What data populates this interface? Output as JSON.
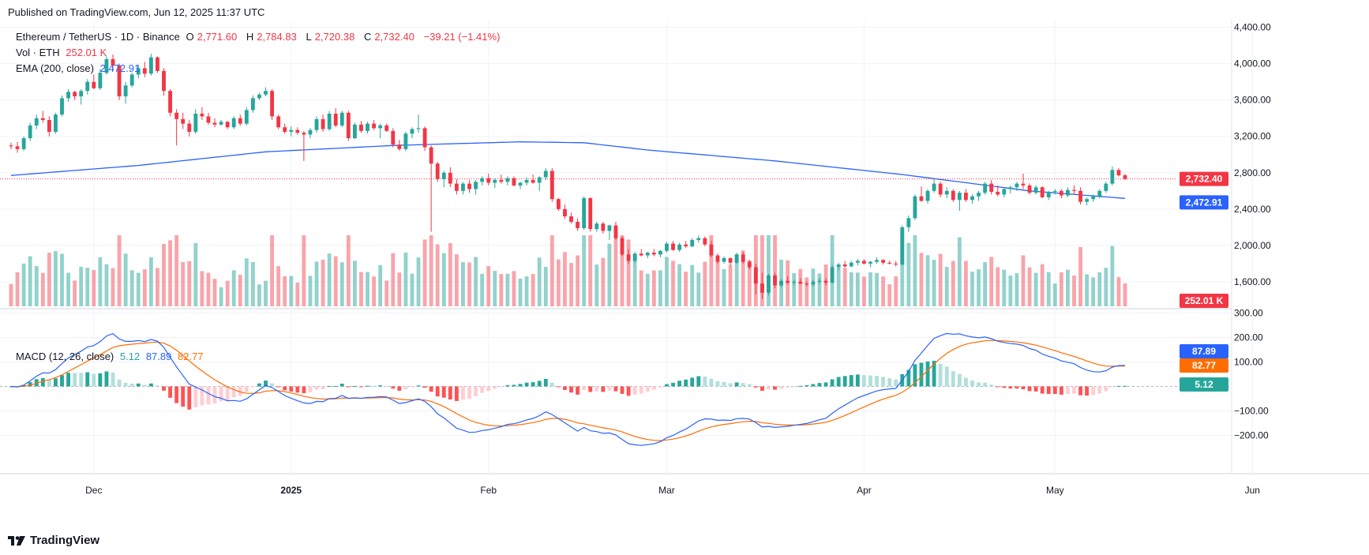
{
  "caption": "Published on TradingView.com, Jun 12, 2025 11:37 UTC",
  "legend": {
    "symbol": "Ethereum / TetherUS · 1D · Binance",
    "o_label": "O",
    "o": "2,771.60",
    "h_label": "H",
    "h": "2,784.83",
    "l_label": "L",
    "l": "2,720.38",
    "c_label": "C",
    "c": "2,732.40",
    "chg": "−39.21 (−1.41%)",
    "vol_label": "Vol · ETH",
    "vol": "252.01 K",
    "ema_label": "EMA (200, close)",
    "ema": "2,472.91",
    "macd_label": "MACD (12, 26, close)",
    "macd_hist": "5.12",
    "macd_line": "87.89",
    "macd_signal": "82.77"
  },
  "brand": "TradingView",
  "colors": {
    "up": "#26a69a",
    "down": "#f23645",
    "ema": "#2962ff",
    "macd": "#2962ff",
    "signal": "#ff6d00"
  },
  "chart_data": {
    "type": "candlestick",
    "x_labels": [
      "Dec",
      "2025",
      "Feb",
      "Mar",
      "Apr",
      "May",
      "Jun"
    ],
    "price_axis": [
      "4,400.00",
      "4,000.00",
      "3,600.00",
      "3,200.00",
      "2,800.00",
      "2,400.00",
      "2,000.00",
      "1,600.00"
    ],
    "macd_axis": [
      "300.00",
      "200.00",
      "100.00",
      "−100.00",
      "−200.00"
    ],
    "ylim_price": [
      1330,
      4440
    ],
    "ylim_macd": [
      -260,
      305
    ],
    "last_price_tag": "2,732.40",
    "ema_tag": "2,472.91",
    "volume_tag": "252.01 K",
    "macd_tag": "87.89",
    "signal_tag": "82.77",
    "hist_tag": "5.12",
    "ema_points": [
      [
        0,
        2770
      ],
      [
        20,
        2880
      ],
      [
        40,
        3030
      ],
      [
        60,
        3100
      ],
      [
        80,
        3140
      ],
      [
        90,
        3130
      ],
      [
        100,
        3050
      ],
      [
        120,
        2930
      ],
      [
        140,
        2780
      ],
      [
        160,
        2600
      ],
      [
        180,
        2490
      ],
      [
        200,
        2460
      ],
      [
        230,
        2470
      ],
      [
        260,
        2473
      ]
    ],
    "candles": [
      [
        3100,
        3130,
        3060,
        3090
      ],
      [
        3090,
        3140,
        3020,
        3060
      ],
      [
        3060,
        3200,
        3040,
        3180
      ],
      [
        3180,
        3350,
        3150,
        3320
      ],
      [
        3320,
        3440,
        3280,
        3400
      ],
      [
        3400,
        3480,
        3350,
        3380
      ],
      [
        3380,
        3420,
        3200,
        3250
      ],
      [
        3250,
        3460,
        3230,
        3440
      ],
      [
        3440,
        3650,
        3420,
        3620
      ],
      [
        3620,
        3720,
        3580,
        3690
      ],
      [
        3690,
        3700,
        3600,
        3640
      ],
      [
        3640,
        3720,
        3550,
        3700
      ],
      [
        3700,
        3830,
        3660,
        3800
      ],
      [
        3800,
        3880,
        3720,
        3730
      ],
      [
        3730,
        3940,
        3710,
        3900
      ],
      [
        3900,
        4080,
        3880,
        4050
      ],
      [
        4050,
        4100,
        3920,
        3980
      ],
      [
        3980,
        4000,
        3600,
        3640
      ],
      [
        3640,
        3800,
        3560,
        3760
      ],
      [
        3760,
        3900,
        3740,
        3880
      ],
      [
        3880,
        3990,
        3840,
        3950
      ],
      [
        3950,
        4020,
        3850,
        3890
      ],
      [
        3890,
        4110,
        3870,
        4070
      ],
      [
        4070,
        4080,
        3900,
        3920
      ],
      [
        3920,
        3950,
        3650,
        3700
      ],
      [
        3700,
        3720,
        3420,
        3460
      ],
      [
        3460,
        3500,
        3100,
        3390
      ],
      [
        3390,
        3460,
        3280,
        3340
      ],
      [
        3340,
        3380,
        3200,
        3250
      ],
      [
        3250,
        3500,
        3230,
        3450
      ],
      [
        3450,
        3520,
        3380,
        3420
      ],
      [
        3420,
        3460,
        3330,
        3350
      ],
      [
        3350,
        3400,
        3300,
        3330
      ],
      [
        3330,
        3380,
        3320,
        3360
      ],
      [
        3360,
        3370,
        3280,
        3300
      ],
      [
        3300,
        3420,
        3280,
        3400
      ],
      [
        3400,
        3440,
        3320,
        3340
      ],
      [
        3340,
        3520,
        3320,
        3490
      ],
      [
        3490,
        3650,
        3460,
        3620
      ],
      [
        3620,
        3680,
        3600,
        3660
      ],
      [
        3660,
        3740,
        3640,
        3700
      ],
      [
        3700,
        3720,
        3380,
        3420
      ],
      [
        3420,
        3440,
        3280,
        3300
      ],
      [
        3300,
        3340,
        3230,
        3250
      ],
      [
        3250,
        3310,
        3200,
        3270
      ],
      [
        3270,
        3300,
        3220,
        3240
      ],
      [
        3240,
        3260,
        2930,
        3220
      ],
      [
        3220,
        3290,
        3180,
        3270
      ],
      [
        3270,
        3420,
        3240,
        3390
      ],
      [
        3390,
        3440,
        3250,
        3280
      ],
      [
        3280,
        3480,
        3260,
        3450
      ],
      [
        3450,
        3510,
        3300,
        3320
      ],
      [
        3320,
        3480,
        3300,
        3460
      ],
      [
        3460,
        3480,
        3150,
        3180
      ],
      [
        3180,
        3350,
        3170,
        3330
      ],
      [
        3330,
        3370,
        3240,
        3260
      ],
      [
        3260,
        3360,
        3230,
        3340
      ],
      [
        3340,
        3380,
        3270,
        3290
      ],
      [
        3290,
        3340,
        3180,
        3320
      ],
      [
        3320,
        3340,
        3250,
        3260
      ],
      [
        3260,
        3290,
        3080,
        3110
      ],
      [
        3110,
        3160,
        3040,
        3060
      ],
      [
        3060,
        3250,
        3040,
        3230
      ],
      [
        3230,
        3300,
        3180,
        3280
      ],
      [
        3280,
        3440,
        3240,
        3290
      ],
      [
        3290,
        3310,
        3040,
        3080
      ],
      [
        3080,
        3100,
        2150,
        2900
      ],
      [
        2900,
        2920,
        2700,
        2730
      ],
      [
        2730,
        2820,
        2640,
        2800
      ],
      [
        2800,
        2860,
        2640,
        2680
      ],
      [
        2680,
        2730,
        2560,
        2600
      ],
      [
        2600,
        2700,
        2560,
        2680
      ],
      [
        2680,
        2720,
        2580,
        2620
      ],
      [
        2620,
        2720,
        2560,
        2700
      ],
      [
        2700,
        2760,
        2660,
        2740
      ],
      [
        2740,
        2790,
        2660,
        2690
      ],
      [
        2690,
        2740,
        2630,
        2720
      ],
      [
        2720,
        2780,
        2680,
        2700
      ],
      [
        2700,
        2760,
        2660,
        2740
      ],
      [
        2740,
        2760,
        2650,
        2660
      ],
      [
        2660,
        2700,
        2620,
        2690
      ],
      [
        2690,
        2750,
        2660,
        2720
      ],
      [
        2720,
        2780,
        2680,
        2690
      ],
      [
        2690,
        2760,
        2600,
        2750
      ],
      [
        2750,
        2850,
        2720,
        2820
      ],
      [
        2820,
        2850,
        2480,
        2510
      ],
      [
        2510,
        2520,
        2380,
        2400
      ],
      [
        2400,
        2450,
        2290,
        2320
      ],
      [
        2320,
        2360,
        2240,
        2260
      ],
      [
        2260,
        2300,
        2160,
        2190
      ],
      [
        2190,
        2540,
        2170,
        2520
      ],
      [
        2520,
        2530,
        2150,
        2180
      ],
      [
        2180,
        2260,
        2150,
        2240
      ],
      [
        2240,
        2260,
        2130,
        2160
      ],
      [
        2160,
        2230,
        2060,
        2220
      ],
      [
        2220,
        2260,
        2060,
        2080
      ],
      [
        2080,
        2100,
        1880,
        1900
      ],
      [
        1900,
        1960,
        1800,
        1830
      ],
      [
        1830,
        1930,
        1810,
        1910
      ],
      [
        1910,
        1960,
        1880,
        1890
      ],
      [
        1890,
        1930,
        1860,
        1920
      ],
      [
        1920,
        1960,
        1880,
        1900
      ],
      [
        1900,
        1950,
        1870,
        1940
      ],
      [
        1940,
        2040,
        1920,
        2020
      ],
      [
        2020,
        2050,
        1940,
        1950
      ],
      [
        1950,
        2030,
        1930,
        2010
      ],
      [
        2010,
        2050,
        1970,
        1990
      ],
      [
        1990,
        2080,
        1980,
        2060
      ],
      [
        2060,
        2110,
        2030,
        2080
      ],
      [
        2080,
        2100,
        1990,
        2010
      ],
      [
        2010,
        2050,
        1870,
        1890
      ],
      [
        1890,
        1910,
        1800,
        1820
      ],
      [
        1820,
        1880,
        1800,
        1860
      ],
      [
        1860,
        1870,
        1780,
        1810
      ],
      [
        1810,
        1920,
        1800,
        1900
      ],
      [
        1900,
        1930,
        1800,
        1820
      ],
      [
        1820,
        1840,
        1740,
        1760
      ],
      [
        1760,
        1800,
        1460,
        1580
      ],
      [
        1580,
        1700,
        1410,
        1480
      ],
      [
        1480,
        1690,
        1450,
        1670
      ],
      [
        1670,
        1700,
        1530,
        1560
      ],
      [
        1560,
        1630,
        1540,
        1610
      ],
      [
        1610,
        1660,
        1570,
        1590
      ],
      [
        1590,
        1620,
        1560,
        1600
      ],
      [
        1600,
        1640,
        1570,
        1580
      ],
      [
        1580,
        1600,
        1550,
        1570
      ],
      [
        1570,
        1620,
        1550,
        1600
      ],
      [
        1600,
        1640,
        1580,
        1610
      ],
      [
        1610,
        1640,
        1560,
        1590
      ],
      [
        1590,
        1780,
        1580,
        1760
      ],
      [
        1760,
        1810,
        1730,
        1790
      ],
      [
        1790,
        1830,
        1750,
        1770
      ],
      [
        1770,
        1830,
        1760,
        1810
      ],
      [
        1810,
        1850,
        1780,
        1830
      ],
      [
        1830,
        1850,
        1790,
        1800
      ],
      [
        1800,
        1830,
        1760,
        1820
      ],
      [
        1820,
        1870,
        1800,
        1840
      ],
      [
        1840,
        1850,
        1790,
        1810
      ],
      [
        1810,
        1830,
        1790,
        1800
      ],
      [
        1800,
        1830,
        1770,
        1790
      ],
      [
        1790,
        2220,
        1780,
        2200
      ],
      [
        2200,
        2330,
        2150,
        2300
      ],
      [
        2300,
        2560,
        2280,
        2540
      ],
      [
        2540,
        2650,
        2480,
        2490
      ],
      [
        2490,
        2620,
        2460,
        2600
      ],
      [
        2600,
        2730,
        2580,
        2680
      ],
      [
        2680,
        2700,
        2530,
        2560
      ],
      [
        2560,
        2640,
        2520,
        2600
      ],
      [
        2600,
        2620,
        2480,
        2500
      ],
      [
        2500,
        2600,
        2380,
        2580
      ],
      [
        2580,
        2620,
        2480,
        2500
      ],
      [
        2500,
        2560,
        2460,
        2540
      ],
      [
        2540,
        2600,
        2490,
        2580
      ],
      [
        2580,
        2700,
        2560,
        2680
      ],
      [
        2680,
        2720,
        2560,
        2590
      ],
      [
        2590,
        2660,
        2540,
        2560
      ],
      [
        2560,
        2640,
        2530,
        2620
      ],
      [
        2620,
        2660,
        2570,
        2640
      ],
      [
        2640,
        2700,
        2600,
        2680
      ],
      [
        2680,
        2790,
        2620,
        2660
      ],
      [
        2660,
        2680,
        2560,
        2580
      ],
      [
        2580,
        2660,
        2560,
        2640
      ],
      [
        2640,
        2650,
        2520,
        2530
      ],
      [
        2530,
        2600,
        2500,
        2590
      ],
      [
        2590,
        2620,
        2560,
        2600
      ],
      [
        2600,
        2620,
        2520,
        2550
      ],
      [
        2550,
        2640,
        2530,
        2610
      ],
      [
        2610,
        2660,
        2570,
        2600
      ],
      [
        2600,
        2640,
        2450,
        2480
      ],
      [
        2480,
        2530,
        2440,
        2510
      ],
      [
        2510,
        2560,
        2480,
        2540
      ],
      [
        2540,
        2620,
        2520,
        2600
      ],
      [
        2600,
        2700,
        2580,
        2680
      ],
      [
        2680,
        2870,
        2660,
        2830
      ],
      [
        2830,
        2850,
        2760,
        2771
      ],
      [
        2771.6,
        2784.83,
        2720.38,
        2732.4
      ]
    ],
    "volume_bars": [],
    "macd_line_points": [],
    "signal_line_points": []
  }
}
